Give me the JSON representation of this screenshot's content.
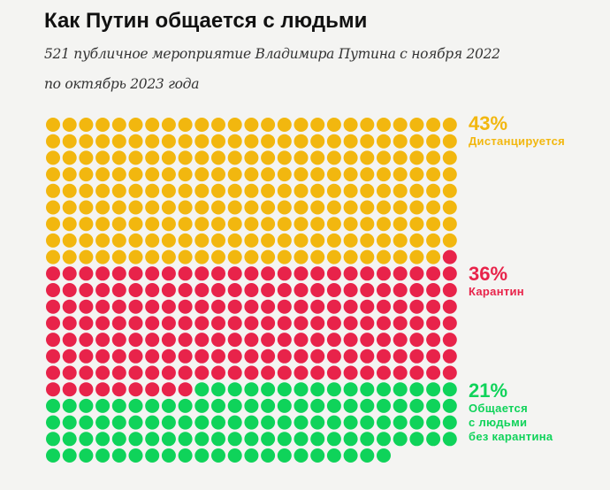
{
  "header": {
    "title": "Как Путин общается с людьми",
    "subtitle_line1": "521 публичное мероприятие Владимира Путина с ноября 2022",
    "subtitle_line2": "по октябрь 2023 года"
  },
  "chart_data": {
    "type": "waffle",
    "total": 521,
    "columns": 25,
    "series": [
      {
        "name": "Дистанцируется",
        "percent_label": "43%",
        "count": 224,
        "color": "#f2b70f",
        "label_lines": [
          "Дистанцируется"
        ]
      },
      {
        "name": "Карантин",
        "percent_label": "36%",
        "count": 185,
        "color": "#e8234a",
        "label_lines": [
          "Карантин"
        ]
      },
      {
        "name": "Общается с людьми без карантина",
        "percent_label": "21%",
        "count": 112,
        "color": "#0fd35a",
        "label_lines": [
          "Общается",
          "с людьми",
          "без карантина"
        ]
      }
    ]
  }
}
